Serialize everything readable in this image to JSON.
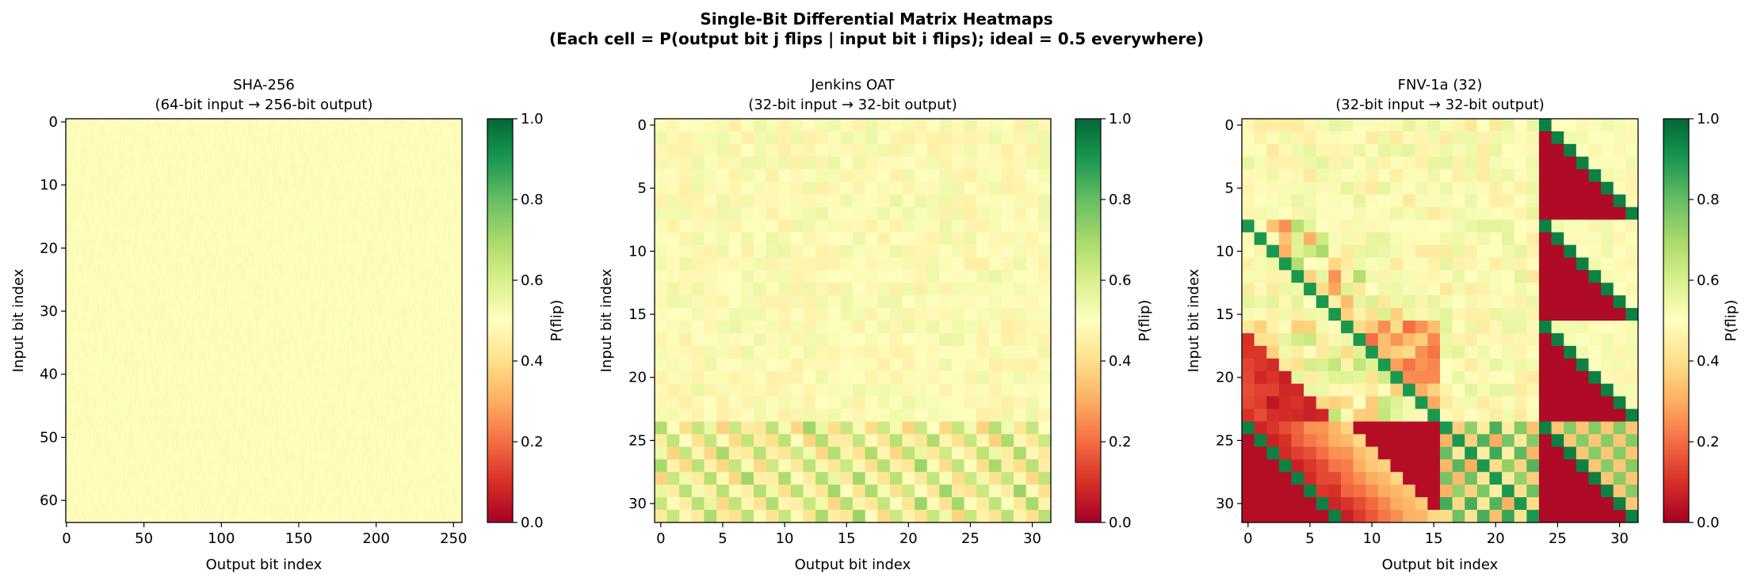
{
  "figure": {
    "title_line1": "Single-Bit Differential Matrix Heatmaps",
    "title_line2": "(Each cell = P(output bit j flips | input bit i flips); ideal = 0.5 everywhere)"
  },
  "colormap": {
    "name": "RdYlGn",
    "stops": [
      "#a50026",
      "#d73027",
      "#f46d43",
      "#fdae61",
      "#fee08b",
      "#ffffbf",
      "#d9ef8b",
      "#a6d96a",
      "#66bd63",
      "#1a9850",
      "#006837"
    ]
  },
  "chart_data": [
    {
      "type": "heatmap",
      "title_line1": "SHA-256",
      "title_line2": "(64-bit input → 256-bit output)",
      "xlabel": "Output bit index",
      "ylabel": "Input bit index",
      "colorbar_label": "P(flip)",
      "colorbar_ticks": [
        "0.0",
        "0.2",
        "0.4",
        "0.6",
        "0.8",
        "1.0"
      ],
      "vmin": 0.0,
      "vmax": 1.0,
      "n_rows": 64,
      "n_cols": 256,
      "xticks": [
        0,
        50,
        100,
        150,
        200,
        250
      ],
      "yticks": [
        0,
        10,
        20,
        30,
        40,
        50,
        60
      ],
      "default_value": 0.5,
      "value_range": [
        0.48,
        0.52
      ],
      "pattern": "uniform",
      "values": []
    },
    {
      "type": "heatmap",
      "title_line1": "Jenkins OAT",
      "title_line2": "(32-bit input → 32-bit output)",
      "xlabel": "Output bit index",
      "ylabel": "Input bit index",
      "colorbar_label": "P(flip)",
      "colorbar_ticks": [
        "0.0",
        "0.2",
        "0.4",
        "0.6",
        "0.8",
        "1.0"
      ],
      "vmin": 0.0,
      "vmax": 1.0,
      "n_rows": 32,
      "n_cols": 32,
      "xticks": [
        0,
        5,
        10,
        15,
        20,
        25,
        30
      ],
      "yticks": [
        0,
        5,
        10,
        15,
        20,
        25,
        30
      ],
      "default_value": 0.5,
      "pattern": "jenkins",
      "values": []
    },
    {
      "type": "heatmap",
      "title_line1": "FNV-1a (32)",
      "title_line2": "(32-bit input → 32-bit output)",
      "xlabel": "Output bit index",
      "ylabel": "Input bit index",
      "colorbar_label": "P(flip)",
      "colorbar_ticks": [
        "0.0",
        "0.2",
        "0.4",
        "0.6",
        "0.8",
        "1.0"
      ],
      "vmin": 0.0,
      "vmax": 1.0,
      "n_rows": 32,
      "n_cols": 32,
      "xticks": [
        0,
        5,
        10,
        15,
        20,
        25,
        30
      ],
      "yticks": [
        0,
        5,
        10,
        15,
        20,
        25,
        30
      ],
      "default_value": 0.5,
      "pattern": "fnv",
      "values": []
    }
  ]
}
